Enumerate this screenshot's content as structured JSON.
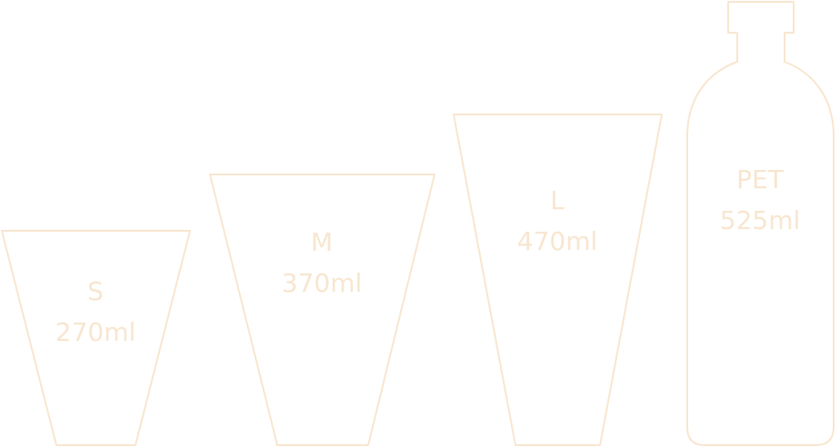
{
  "containers": [
    {
      "size": "S",
      "volume": "270ml"
    },
    {
      "size": "M",
      "volume": "370ml"
    },
    {
      "size": "L",
      "volume": "470ml"
    },
    {
      "size": "PET",
      "volume": "525ml"
    }
  ],
  "colors": {
    "outline": "#f8e6d0",
    "text": "#f8e6d0",
    "background": "#ffffff"
  }
}
